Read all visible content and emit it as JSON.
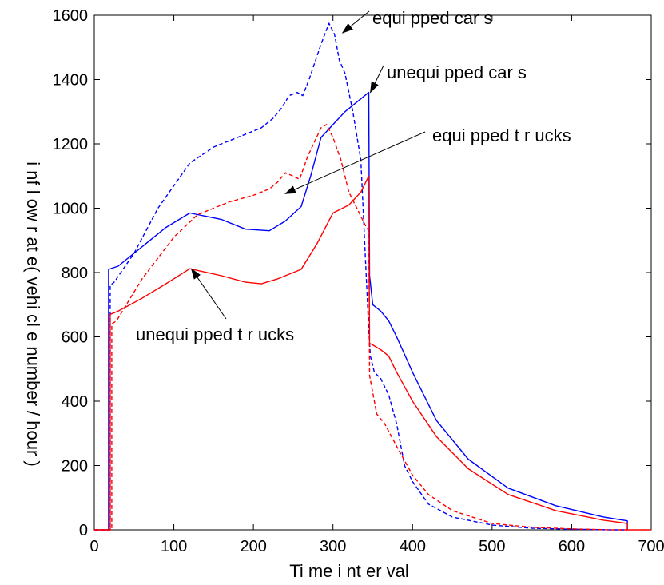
{
  "chart_data": {
    "type": "line",
    "title": "",
    "xlabel": "Ti me  i nt er val",
    "ylabel": "i nf l ow r at e( vehi cl e  number / hour )",
    "xlim": [
      0,
      700
    ],
    "ylim": [
      0,
      1600
    ],
    "x_ticks": [
      0,
      100,
      200,
      300,
      400,
      500,
      600,
      700
    ],
    "y_ticks": [
      0,
      200,
      400,
      600,
      800,
      1000,
      1200,
      1400,
      1600
    ],
    "grid": false,
    "box": true,
    "series": [
      {
        "name": "equi pped  car s",
        "color": "#0000ff",
        "dash": "dashed",
        "x": [
          0,
          20,
          20,
          25,
          50,
          80,
          120,
          150,
          180,
          210,
          225,
          235,
          245,
          255,
          262,
          270,
          285,
          295,
          302,
          308,
          315,
          325,
          335,
          345,
          347,
          352,
          360,
          370,
          380,
          390,
          400,
          420,
          450,
          500,
          550,
          600,
          650,
          670
        ],
        "y": [
          0,
          0,
          760,
          770,
          860,
          1000,
          1140,
          1190,
          1220,
          1250,
          1280,
          1310,
          1350,
          1360,
          1350,
          1400,
          1510,
          1575,
          1540,
          1460,
          1420,
          1300,
          1150,
          620,
          540,
          490,
          470,
          420,
          330,
          200,
          150,
          80,
          40,
          15,
          5,
          2,
          0,
          0
        ]
      },
      {
        "name": "unequi pped  car s",
        "color": "#0000ff",
        "dash": "solid",
        "x": [
          0,
          18,
          18,
          30,
          60,
          90,
          120,
          160,
          190,
          220,
          240,
          260,
          272,
          285,
          300,
          315,
          330,
          345,
          346,
          350,
          360,
          370,
          380,
          400,
          430,
          470,
          520,
          580,
          640,
          670,
          670
        ],
        "y": [
          0,
          0,
          810,
          820,
          880,
          940,
          985,
          965,
          935,
          930,
          960,
          1005,
          1100,
          1220,
          1260,
          1300,
          1330,
          1360,
          790,
          700,
          680,
          650,
          600,
          490,
          340,
          220,
          130,
          75,
          40,
          28,
          0
        ]
      },
      {
        "name": "equi pped  t r ucks",
        "color": "#ff0000",
        "dash": "dashed",
        "x": [
          0,
          22,
          22,
          28,
          60,
          100,
          130,
          170,
          200,
          220,
          230,
          240,
          250,
          258,
          268,
          285,
          292,
          300,
          310,
          320,
          330,
          340,
          345,
          346,
          355,
          365,
          380,
          400,
          420,
          450,
          500,
          550,
          600,
          650,
          670
        ],
        "y": [
          0,
          0,
          640,
          650,
          780,
          910,
          980,
          1020,
          1040,
          1060,
          1080,
          1110,
          1100,
          1090,
          1160,
          1250,
          1260,
          1220,
          1150,
          1050,
          1000,
          950,
          930,
          480,
          360,
          330,
          260,
          170,
          110,
          60,
          20,
          8,
          3,
          0,
          0
        ]
      },
      {
        "name": "unequi pped  t r ucks",
        "color": "#ff0000",
        "dash": "solid",
        "x": [
          0,
          20,
          20,
          30,
          60,
          90,
          120,
          160,
          190,
          210,
          230,
          260,
          280,
          300,
          320,
          335,
          345,
          346,
          350,
          360,
          370,
          380,
          400,
          430,
          470,
          520,
          580,
          640,
          670,
          670,
          700
        ],
        "y": [
          0,
          0,
          670,
          680,
          720,
          765,
          812,
          790,
          770,
          765,
          780,
          810,
          890,
          985,
          1010,
          1050,
          1100,
          580,
          575,
          560,
          540,
          490,
          400,
          290,
          190,
          110,
          60,
          30,
          20,
          0,
          0
        ]
      }
    ],
    "annotations": [
      {
        "text": "equi pped   car s",
        "target_x": 312,
        "target_y": 1545
      },
      {
        "text": "unequi pped  car s",
        "target_x": 347,
        "target_y": 1360
      },
      {
        "text": "equi pped  t r ucks",
        "target_x": 240,
        "target_y": 1045
      },
      {
        "text": "unequi pped  t r ucks",
        "target_x": 122,
        "target_y": 812
      }
    ]
  }
}
